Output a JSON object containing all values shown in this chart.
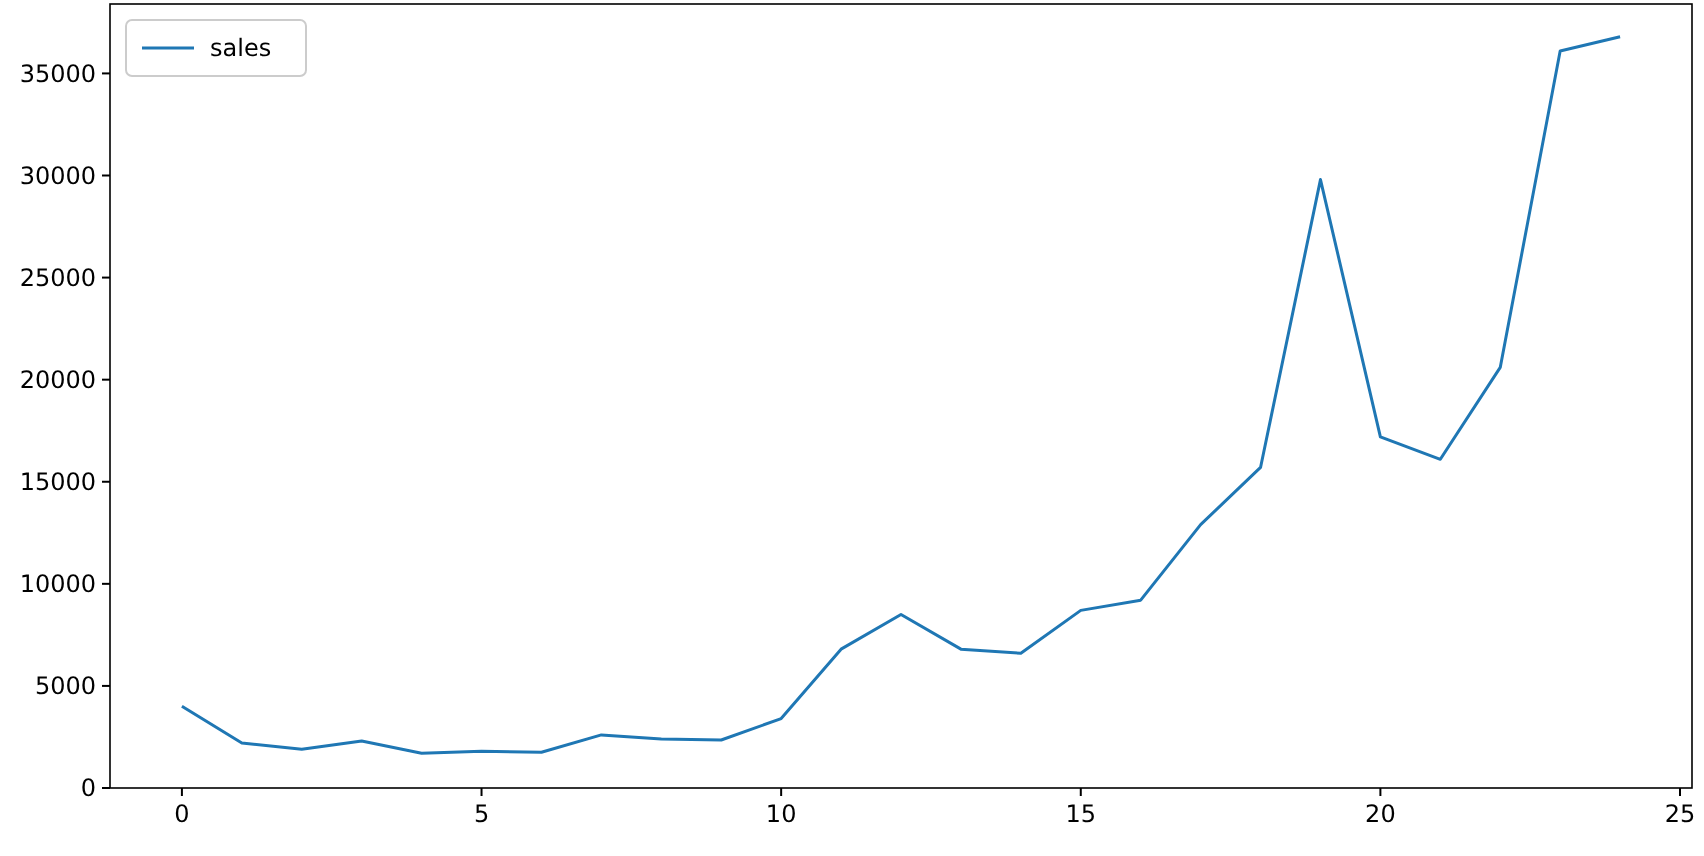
{
  "chart_data": {
    "type": "line",
    "x": [
      0,
      1,
      2,
      3,
      4,
      5,
      6,
      7,
      8,
      9,
      10,
      11,
      12,
      13,
      14,
      15,
      16,
      17,
      18,
      19,
      20,
      21,
      22,
      23,
      24
    ],
    "series": [
      {
        "name": "sales",
        "color": "#1f77b4",
        "values": [
          4000,
          2200,
          1900,
          2300,
          1700,
          1800,
          1750,
          2600,
          2400,
          2350,
          3400,
          6800,
          8500,
          6800,
          6600,
          8700,
          9200,
          12900,
          15700,
          29800,
          17200,
          16100,
          20600,
          36100,
          36800
        ]
      }
    ],
    "xlim": [
      -1.2,
      25.2
    ],
    "ylim": [
      0,
      38400
    ],
    "xticks": [
      0,
      5,
      10,
      15,
      20,
      25
    ],
    "yticks": [
      0,
      5000,
      10000,
      15000,
      20000,
      25000,
      30000,
      35000
    ],
    "legend": "top left",
    "grid": false,
    "line_style": "solid"
  }
}
